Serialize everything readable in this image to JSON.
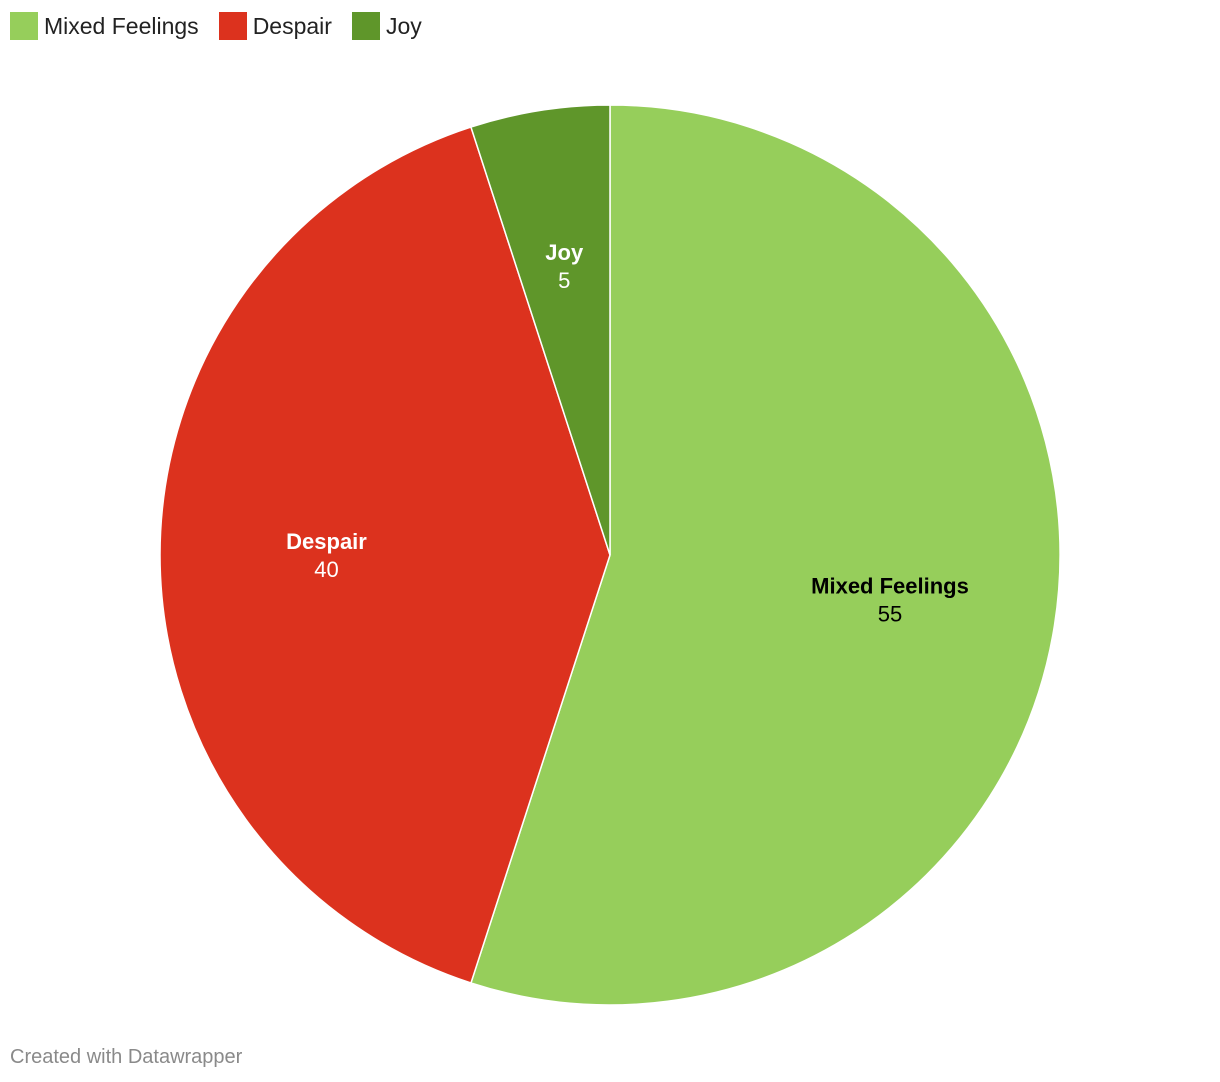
{
  "chart_data": {
    "type": "pie",
    "categories": [
      "Mixed Feelings",
      "Despair",
      "Joy"
    ],
    "values": [
      55,
      40,
      5
    ],
    "colors": [
      "#96ce5b",
      "#dc321e",
      "#5f962a"
    ],
    "label_colors": [
      "#000000",
      "#ffffff",
      "#ffffff"
    ],
    "legend_position": "top-left"
  },
  "legend": {
    "items": [
      {
        "label": "Mixed Feelings",
        "color": "#96ce5b"
      },
      {
        "label": "Despair",
        "color": "#dc321e"
      },
      {
        "label": "Joy",
        "color": "#5f962a"
      }
    ]
  },
  "footer": {
    "credit": "Created with Datawrapper"
  }
}
